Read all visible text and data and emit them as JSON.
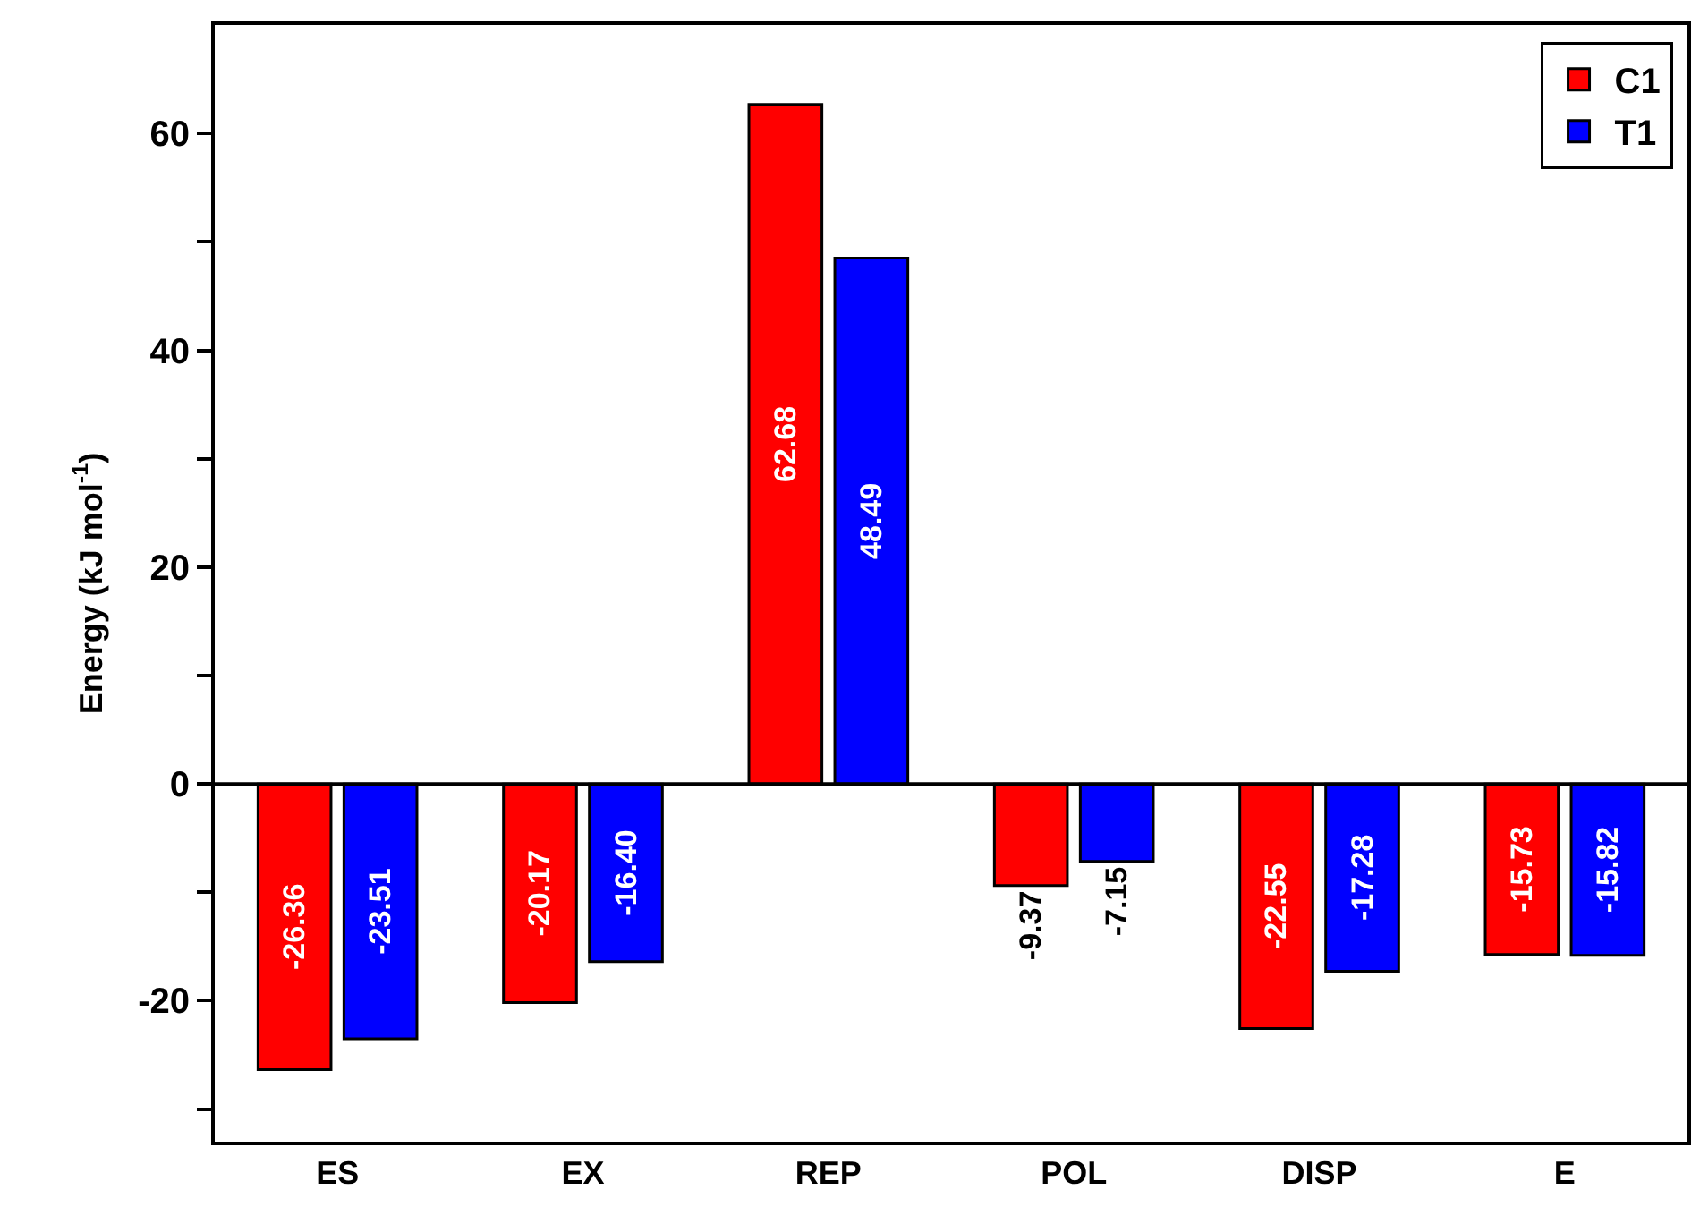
{
  "chart_data": {
    "type": "bar",
    "ylabel": "Energy (kJ mol$^{-1}$)",
    "categories": [
      "ES",
      "EX",
      "REP",
      "POL",
      "DISP",
      "E"
    ],
    "series": [
      {
        "name": "C1",
        "color": "#ff0000",
        "values": [
          -26.36,
          -20.17,
          62.68,
          -9.37,
          -22.55,
          -15.73
        ],
        "value_labels": [
          "-26.36",
          "-20.17",
          "62.68",
          "-9.37",
          "-22.55",
          "-15.73"
        ]
      },
      {
        "name": "T1",
        "color": "#0000ff",
        "values": [
          -23.51,
          -16.4,
          48.49,
          -7.15,
          -17.28,
          -15.82
        ],
        "value_labels": [
          "-23.51",
          "-16.40",
          "48.49",
          "-7.15",
          "-17.28",
          "-15.82"
        ]
      }
    ],
    "ylim": [
      -33,
      70
    ],
    "yticks": [
      {
        "value": -30,
        "label": null
      },
      -20,
      {
        "value": -10,
        "label": null
      },
      0,
      {
        "value": 10,
        "label": null
      },
      20,
      {
        "value": 30,
        "label": null
      },
      40,
      {
        "value": 50,
        "label": null
      },
      60
    ],
    "ref_lines": [
      {
        "axis": "y",
        "value": 0,
        "color": "#000000"
      }
    ],
    "legend": "top right"
  }
}
